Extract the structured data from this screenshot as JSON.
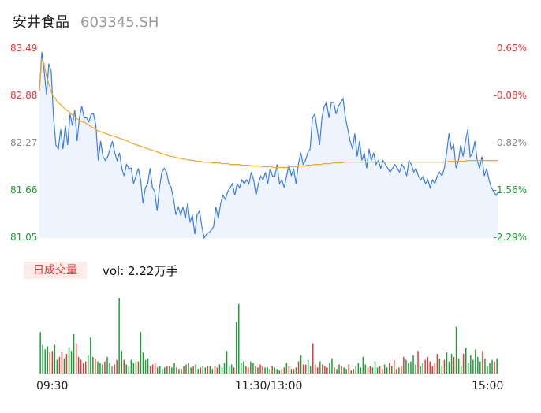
{
  "header": {
    "name": "安井食品",
    "code": "603345.SH"
  },
  "price_axis": [
    "83.49",
    "82.88",
    "82.27",
    "81.66",
    "81.05"
  ],
  "pct_axis": [
    "0.65%",
    "-0.08%",
    "-0.82%",
    "-1.56%",
    "-2.29%"
  ],
  "colors": {
    "up": "#e53935",
    "down": "#1aa035",
    "neutral": "#888888",
    "price_line": "#3d7ee6",
    "avg_line": "#f5a623",
    "fill": "#eef4fd"
  },
  "volume": {
    "badge": "日成交量",
    "label": "vol: 2.22万手"
  },
  "time_axis": [
    "09:30",
    "11:30/13:00",
    "15:00"
  ],
  "chart_data": [
    {
      "type": "line",
      "ylim": [
        81.05,
        83.49
      ],
      "series": [
        {
          "values": [
            82.95,
            83.45,
            83.2,
            82.9,
            83.3,
            83.2,
            82.6,
            82.25,
            82.2,
            82.45,
            82.2,
            82.5,
            82.25,
            82.65,
            82.5,
            82.7,
            82.3,
            82.6,
            82.75,
            82.6,
            82.6,
            82.55,
            82.65,
            82.65,
            82.5,
            82.05,
            82.3,
            82.1,
            82.05,
            82.1,
            82.2,
            82.3,
            82.15,
            82.05,
            82.15,
            81.95,
            81.85,
            82.0,
            81.95,
            81.95,
            81.75,
            81.85,
            81.95,
            81.8,
            81.5,
            81.7,
            81.75,
            81.95,
            81.7,
            81.65,
            81.4,
            81.7,
            81.9,
            81.95,
            81.9,
            81.75,
            81.7,
            81.55,
            81.35,
            81.45,
            81.35,
            81.45,
            81.3,
            81.5,
            81.25,
            81.35,
            81.1,
            81.35,
            81.4,
            81.2,
            81.05,
            81.1,
            81.12,
            81.15,
            81.2,
            81.45,
            81.3,
            81.5,
            81.6,
            81.55,
            81.65,
            81.7,
            81.75,
            81.6,
            81.75,
            81.7,
            81.8,
            81.75,
            81.8,
            81.75,
            81.9,
            81.8,
            81.6,
            81.75,
            81.85,
            81.8,
            81.9,
            81.75,
            81.95,
            81.85,
            81.85,
            82.0,
            81.75,
            81.8,
            81.7,
            81.85,
            82.0,
            81.85,
            81.95,
            81.75,
            82.0,
            82.15,
            82.0,
            82.05,
            82.15,
            82.2,
            82.6,
            82.65,
            82.45,
            82.25,
            82.6,
            82.75,
            82.8,
            82.6,
            82.8,
            82.8,
            82.65,
            82.75,
            82.8,
            82.85,
            82.6,
            82.45,
            82.3,
            82.2,
            82.4,
            82.1,
            82.3,
            82.05,
            82.15,
            81.95,
            82.2,
            82.05,
            82.15,
            82.0,
            82.05,
            81.95,
            82.05,
            82.0,
            81.95,
            81.9,
            81.95,
            82.0,
            81.95,
            81.9,
            82.0,
            81.95,
            81.85,
            82.05,
            82.0,
            81.9,
            81.95,
            81.85,
            81.8,
            81.85,
            81.75,
            81.8,
            81.7,
            81.8,
            81.75,
            81.85,
            81.9,
            81.85,
            81.95,
            82.15,
            82.4,
            82.2,
            82.25,
            81.95,
            82.05,
            82.25,
            82.1,
            82.3,
            82.45,
            82.1,
            82.15,
            82.3,
            82.05,
            81.95,
            82.1,
            81.85,
            81.95,
            81.8,
            81.7,
            81.65,
            81.6,
            81.65
          ]
        },
        {
          "values": [
            82.95,
            83.35,
            83.3,
            83.15,
            83.05,
            82.95,
            82.88,
            82.85,
            82.8,
            82.78,
            82.75,
            82.72,
            82.7,
            82.68,
            82.65,
            82.63,
            82.6,
            82.58,
            82.56,
            82.55,
            82.54,
            82.52,
            82.5,
            82.48,
            82.47,
            82.45,
            82.43,
            82.42,
            82.41,
            82.4,
            82.39,
            82.38,
            82.37,
            82.36,
            82.35,
            82.34,
            82.33,
            82.32,
            82.31,
            82.3,
            82.28,
            82.27,
            82.26,
            82.25,
            82.24,
            82.23,
            82.22,
            82.21,
            82.2,
            82.19,
            82.18,
            82.17,
            82.16,
            82.15,
            82.14,
            82.13,
            82.12,
            82.11,
            82.1,
            82.1,
            82.09,
            82.08,
            82.08,
            82.07,
            82.07,
            82.06,
            82.06,
            82.05,
            82.05,
            82.04,
            82.04,
            82.04,
            82.03,
            82.03,
            82.03,
            82.03,
            82.02,
            82.02,
            82.02,
            82.02,
            82.01,
            82.01,
            82.01,
            82.01,
            82.0,
            82.0,
            82.0,
            82.0,
            82.0,
            81.99,
            81.99,
            81.99,
            81.99,
            81.98,
            81.98,
            81.98,
            81.98,
            81.98,
            81.97,
            81.97,
            81.97,
            81.97,
            81.97,
            81.96,
            81.96,
            81.96,
            81.96,
            81.96,
            81.96,
            81.96,
            81.97,
            81.97,
            81.97,
            81.97,
            81.98,
            81.98,
            81.98,
            81.98,
            81.99,
            81.99,
            81.99,
            82.0,
            82.0,
            82.0,
            82.0,
            82.01,
            82.01,
            82.01,
            82.01,
            82.02,
            82.02,
            82.02,
            82.02,
            82.02,
            82.03,
            82.03,
            82.03,
            82.03,
            82.03,
            82.03,
            82.03,
            82.03,
            82.03,
            82.03,
            82.03,
            82.03,
            82.03,
            82.03,
            82.03,
            82.03,
            82.03,
            82.03,
            82.03,
            82.03,
            82.03,
            82.03,
            82.03,
            82.03,
            82.03,
            82.03,
            82.03,
            82.03,
            82.03,
            82.03,
            82.03,
            82.03,
            82.03,
            82.03,
            82.03,
            82.03,
            82.03,
            82.03,
            82.03,
            82.03,
            82.03,
            82.03,
            82.03,
            82.03,
            82.03,
            82.03,
            82.04,
            82.04,
            82.04,
            82.04,
            82.04,
            82.04,
            82.04,
            82.04,
            82.05,
            82.05,
            82.05,
            82.05,
            82.05,
            82.05,
            82.05,
            82.05,
            82.05,
            82.05,
            82.05,
            82.05,
            82.05,
            82.05,
            82.05
          ]
        }
      ]
    },
    {
      "type": "bar",
      "ylim": [
        0,
        100
      ],
      "values": [
        55,
        38,
        32,
        36,
        28,
        30,
        38,
        18,
        22,
        28,
        20,
        26,
        35,
        30,
        52,
        40,
        22,
        18,
        14,
        16,
        24,
        48,
        22,
        20,
        16,
        14,
        12,
        16,
        22,
        14,
        10,
        12,
        18,
        100,
        30,
        18,
        12,
        10,
        18,
        14,
        16,
        16,
        55,
        28,
        18,
        20,
        10,
        12,
        14,
        8,
        10,
        6,
        8,
        10,
        10,
        8,
        14,
        8,
        6,
        6,
        10,
        12,
        14,
        8,
        10,
        12,
        6,
        8,
        10,
        8,
        10,
        10,
        6,
        10,
        8,
        12,
        8,
        14,
        30,
        10,
        12,
        8,
        68,
        92,
        14,
        16,
        10,
        8,
        16,
        14,
        10,
        8,
        12,
        10,
        8,
        8,
        6,
        10,
        8,
        6,
        4,
        6,
        8,
        14,
        10,
        6,
        6,
        8,
        16,
        24,
        12,
        12,
        18,
        10,
        40,
        12,
        8,
        16,
        12,
        10,
        8,
        14,
        20,
        8,
        6,
        12,
        10,
        8,
        6,
        12,
        4,
        6,
        10,
        14,
        8,
        22,
        12,
        8,
        10,
        8,
        16,
        8,
        10,
        6,
        12,
        8,
        14,
        10,
        18,
        6,
        8,
        10,
        22,
        18,
        14,
        16,
        24,
        12,
        30,
        10,
        14,
        18,
        22,
        16,
        10,
        14,
        26,
        20,
        10,
        18,
        28,
        16,
        26,
        22,
        62,
        20,
        10,
        26,
        34,
        14,
        24,
        18,
        32,
        22,
        16,
        30,
        20,
        10,
        14,
        18,
        16,
        20
      ],
      "colors": [
        "d",
        "d",
        "d",
        "d",
        "u",
        "u",
        "d",
        "d",
        "u",
        "u",
        "d",
        "u",
        "d",
        "d",
        "d",
        "u",
        "u",
        "u",
        "u",
        "u",
        "d",
        "d",
        "d",
        "u",
        "d",
        "d",
        "d",
        "u",
        "d",
        "d",
        "n",
        "u",
        "u",
        "d",
        "d",
        "u",
        "d",
        "d",
        "d",
        "d",
        "d",
        "u",
        "d",
        "d",
        "d",
        "d",
        "u",
        "u",
        "u",
        "d",
        "d",
        "d",
        "d",
        "u",
        "d",
        "d",
        "d",
        "u",
        "d",
        "u",
        "d",
        "u",
        "d",
        "d",
        "u",
        "d",
        "d",
        "u",
        "d",
        "d",
        "u",
        "d",
        "d",
        "u",
        "u",
        "d",
        "d",
        "d",
        "d",
        "d",
        "d",
        "u",
        "d",
        "d",
        "d",
        "d",
        "u",
        "u",
        "d",
        "d",
        "u",
        "d",
        "u",
        "u",
        "d",
        "d",
        "d",
        "u",
        "d",
        "d",
        "u",
        "d",
        "u",
        "d",
        "u",
        "d",
        "u",
        "d",
        "u",
        "d",
        "u",
        "u",
        "d",
        "d",
        "u",
        "u",
        "u",
        "d",
        "u",
        "u",
        "u",
        "d",
        "d",
        "u",
        "d",
        "d",
        "u",
        "d",
        "d",
        "u",
        "d",
        "u",
        "d",
        "d",
        "d",
        "d",
        "d",
        "u",
        "u",
        "d",
        "d",
        "d",
        "u",
        "u",
        "d",
        "d",
        "u",
        "d",
        "u",
        "u",
        "d",
        "u",
        "u",
        "d",
        "d",
        "d",
        "d",
        "d",
        "u",
        "d",
        "d",
        "u",
        "u",
        "u",
        "u",
        "u",
        "u",
        "d",
        "d",
        "u",
        "d",
        "d",
        "d",
        "u",
        "d",
        "d",
        "d",
        "u",
        "d",
        "d",
        "d",
        "d",
        "d",
        "d",
        "d",
        "u",
        "d",
        "d",
        "d",
        "d",
        "u",
        "d",
        "n"
      ]
    }
  ]
}
